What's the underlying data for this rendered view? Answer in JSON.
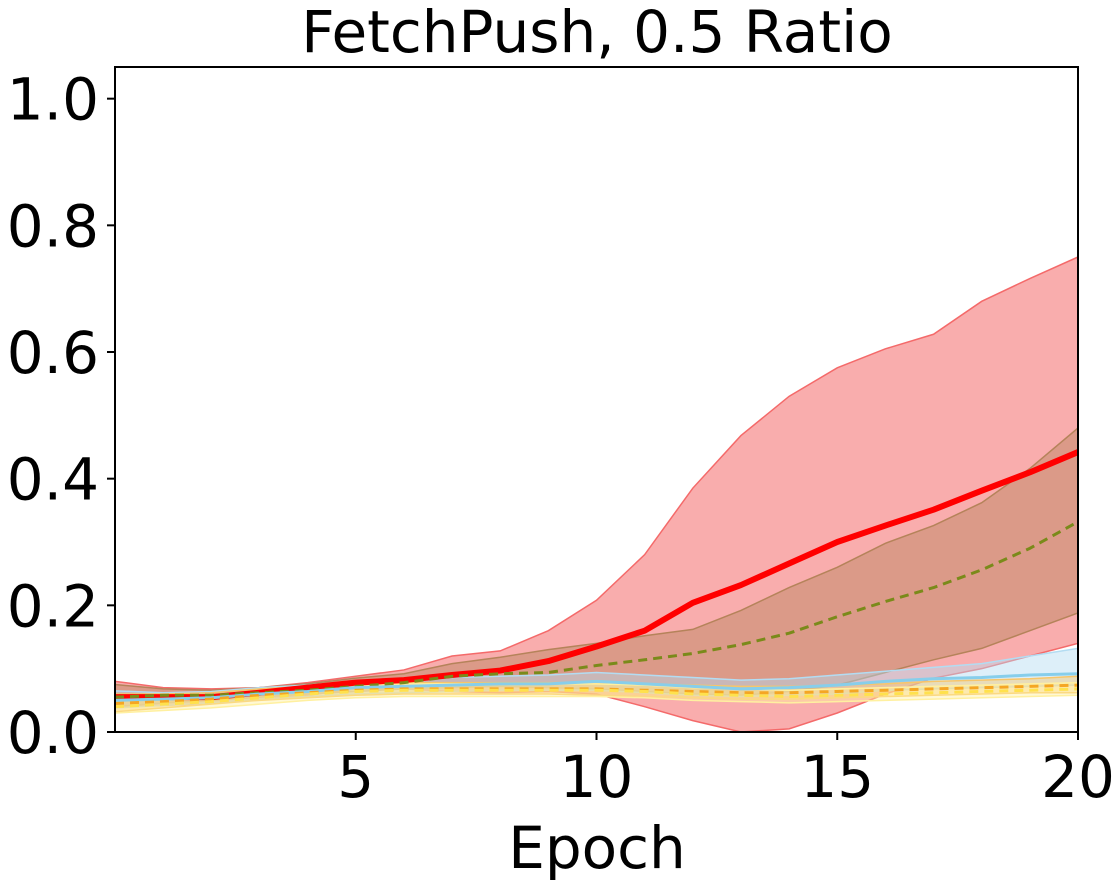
{
  "chart_data": {
    "type": "line",
    "title": "FetchPush, 0.5 Ratio",
    "xlabel": "Epoch",
    "ylabel": "",
    "xlim": [
      0,
      20
    ],
    "ylim": [
      0.0,
      1.05
    ],
    "xticks": [
      5,
      10,
      15,
      20
    ],
    "xtick_labels": [
      "5",
      "10",
      "15",
      "20"
    ],
    "yticks": [
      0.0,
      0.2,
      0.4,
      0.6,
      0.8,
      1.0
    ],
    "ytick_labels": [
      "0.0",
      "0.2",
      "0.4",
      "0.6",
      "0.8",
      "1.0"
    ],
    "grid": false,
    "legend": "none",
    "x": [
      0,
      1,
      2,
      3,
      4,
      5,
      6,
      7,
      8,
      9,
      10,
      11,
      12,
      13,
      14,
      15,
      16,
      17,
      18,
      19,
      20
    ],
    "series": [
      {
        "color": "#ff0000",
        "fill_color": "#f46a6a",
        "line_style": "solid",
        "line_width": 6,
        "values": [
          0.055,
          0.055,
          0.055,
          0.062,
          0.07,
          0.078,
          0.082,
          0.09,
          0.097,
          0.112,
          0.135,
          0.16,
          0.204,
          0.232,
          0.266,
          0.3,
          0.326,
          0.351,
          0.381,
          0.41,
          0.442
        ],
        "upper": [
          0.08,
          0.07,
          0.068,
          0.07,
          0.078,
          0.088,
          0.098,
          0.12,
          0.128,
          0.16,
          0.208,
          0.28,
          0.385,
          0.468,
          0.53,
          0.575,
          0.605,
          0.628,
          0.68,
          0.716,
          0.75
        ],
        "lower": [
          0.04,
          0.042,
          0.045,
          0.052,
          0.058,
          0.068,
          0.068,
          0.064,
          0.062,
          0.064,
          0.06,
          0.04,
          0.018,
          0.0,
          0.005,
          0.03,
          0.06,
          0.085,
          0.1,
          0.12,
          0.14
        ]
      },
      {
        "color": "#7a8a1a",
        "fill_color": "#b5835a",
        "line_style": "dashed",
        "line_width": 3,
        "values": [
          0.055,
          0.058,
          0.058,
          0.062,
          0.066,
          0.072,
          0.078,
          0.088,
          0.092,
          0.094,
          0.105,
          0.114,
          0.124,
          0.138,
          0.156,
          0.182,
          0.206,
          0.228,
          0.256,
          0.29,
          0.332
        ],
        "upper": [
          0.075,
          0.068,
          0.066,
          0.07,
          0.076,
          0.085,
          0.092,
          0.108,
          0.118,
          0.13,
          0.14,
          0.152,
          0.162,
          0.192,
          0.228,
          0.26,
          0.298,
          0.326,
          0.362,
          0.416,
          0.48
        ],
        "lower": [
          0.04,
          0.046,
          0.05,
          0.055,
          0.06,
          0.064,
          0.068,
          0.07,
          0.072,
          0.07,
          0.068,
          0.064,
          0.06,
          0.058,
          0.064,
          0.074,
          0.094,
          0.114,
          0.132,
          0.16,
          0.188
        ]
      },
      {
        "color": "#87ceeb",
        "fill_color": "#b3dcf2",
        "line_style": "solid",
        "line_width": 3,
        "values": [
          0.05,
          0.052,
          0.054,
          0.06,
          0.064,
          0.07,
          0.072,
          0.074,
          0.076,
          0.076,
          0.08,
          0.076,
          0.072,
          0.068,
          0.07,
          0.074,
          0.08,
          0.084,
          0.086,
          0.09,
          0.092
        ],
        "upper": [
          0.065,
          0.062,
          0.064,
          0.07,
          0.074,
          0.08,
          0.082,
          0.086,
          0.088,
          0.09,
          0.094,
          0.09,
          0.086,
          0.082,
          0.084,
          0.09,
          0.096,
          0.102,
          0.108,
          0.12,
          0.132
        ],
        "lower": [
          0.038,
          0.042,
          0.046,
          0.052,
          0.056,
          0.06,
          0.062,
          0.064,
          0.066,
          0.066,
          0.066,
          0.062,
          0.058,
          0.056,
          0.058,
          0.06,
          0.066,
          0.068,
          0.07,
          0.072,
          0.074
        ]
      },
      {
        "color": "#f5a623",
        "fill_color": "#f7c66a",
        "line_style": "dashed",
        "line_width": 3,
        "values": [
          0.045,
          0.048,
          0.052,
          0.058,
          0.062,
          0.066,
          0.068,
          0.068,
          0.068,
          0.068,
          0.068,
          0.066,
          0.064,
          0.062,
          0.062,
          0.064,
          0.066,
          0.068,
          0.07,
          0.072,
          0.074
        ],
        "upper": [
          0.06,
          0.06,
          0.062,
          0.068,
          0.072,
          0.076,
          0.078,
          0.078,
          0.078,
          0.078,
          0.078,
          0.076,
          0.074,
          0.072,
          0.072,
          0.074,
          0.076,
          0.08,
          0.082,
          0.084,
          0.088
        ],
        "lower": [
          0.032,
          0.038,
          0.044,
          0.05,
          0.054,
          0.058,
          0.06,
          0.06,
          0.06,
          0.06,
          0.058,
          0.056,
          0.054,
          0.052,
          0.052,
          0.054,
          0.056,
          0.058,
          0.06,
          0.062,
          0.062
        ]
      },
      {
        "color": "#ffe14d",
        "fill_color": "#fff0a0",
        "line_style": "dashed",
        "line_width": 3,
        "values": [
          0.04,
          0.044,
          0.048,
          0.054,
          0.06,
          0.064,
          0.066,
          0.066,
          0.066,
          0.066,
          0.066,
          0.064,
          0.06,
          0.058,
          0.056,
          0.058,
          0.06,
          0.062,
          0.064,
          0.066,
          0.068
        ],
        "upper": [
          0.05,
          0.054,
          0.058,
          0.064,
          0.07,
          0.074,
          0.076,
          0.076,
          0.076,
          0.076,
          0.076,
          0.074,
          0.07,
          0.068,
          0.066,
          0.068,
          0.07,
          0.072,
          0.074,
          0.076,
          0.078
        ],
        "lower": [
          0.03,
          0.034,
          0.038,
          0.044,
          0.05,
          0.054,
          0.056,
          0.056,
          0.056,
          0.056,
          0.056,
          0.054,
          0.05,
          0.048,
          0.046,
          0.048,
          0.05,
          0.052,
          0.054,
          0.056,
          0.058
        ]
      }
    ]
  }
}
